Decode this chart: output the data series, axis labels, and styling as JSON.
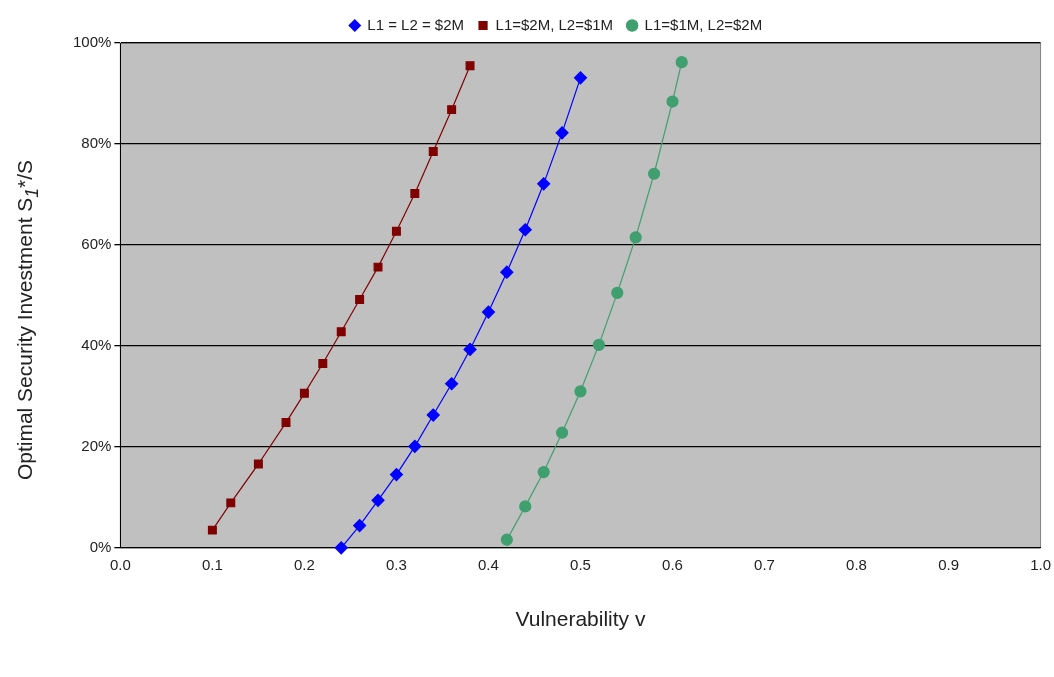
{
  "chart_data": {
    "type": "line",
    "xlabel": "Vulnerability v",
    "ylabel": "Optimal Security Investment S$_{1}$*/S",
    "xlim": [
      0,
      1
    ],
    "xticks": [
      {
        "value": 0,
        "label": "0.0"
      },
      {
        "value": 0.1,
        "label": "0.1"
      },
      {
        "value": 0.2,
        "label": "0.2"
      },
      {
        "value": 0.3,
        "label": "0.3"
      },
      {
        "value": 0.4,
        "label": "0.4"
      },
      {
        "value": 0.5,
        "label": "0.5"
      },
      {
        "value": 0.6,
        "label": "0.6"
      },
      {
        "value": 0.7,
        "label": "0.7"
      },
      {
        "value": 0.8,
        "label": "0.8"
      },
      {
        "value": 0.9,
        "label": "0.9"
      },
      {
        "value": 1,
        "label": "1.0"
      }
    ],
    "ylim": [
      0,
      100
    ],
    "yticks": [
      {
        "value": 0,
        "label": "0%"
      },
      {
        "value": 20,
        "label": "20%"
      },
      {
        "value": 40,
        "label": "40%"
      },
      {
        "value": 60,
        "label": "60%"
      },
      {
        "value": 80,
        "label": "80%"
      },
      {
        "value": 100,
        "label": "100%"
      }
    ],
    "grid": "y",
    "legend": "top",
    "series": [
      {
        "name": "L1 = L2 = $2M",
        "color": "#0000ff",
        "marker": "diamond",
        "x": [
          0.24,
          0.26,
          0.28,
          0.3,
          0.32,
          0.34,
          0.36,
          0.38,
          0.4,
          0.42,
          0.44,
          0.46,
          0.48,
          0.5
        ],
        "values": [
          0,
          4.4,
          9.4,
          14.5,
          20.1,
          26.3,
          32.5,
          39.3,
          46.7,
          54.6,
          63.0,
          72.1,
          82.2,
          93.1
        ]
      },
      {
        "name": "L1=$2M, L2=$1M",
        "color": "#800000",
        "marker": "square",
        "x": [
          0.1,
          0.12,
          0.15,
          0.18,
          0.2,
          0.22,
          0.24,
          0.26,
          0.28,
          0.3,
          0.32,
          0.34,
          0.36,
          0.38
        ],
        "values": [
          3.5,
          8.9,
          16.6,
          24.8,
          30.6,
          36.5,
          42.8,
          49.2,
          55.6,
          62.7,
          70.2,
          78.5,
          86.8,
          95.5
        ]
      },
      {
        "name": "L1=$1M, L2=$2M",
        "color": "#3f9f6f",
        "marker": "circle",
        "x": [
          0.42,
          0.44,
          0.46,
          0.48,
          0.5,
          0.52,
          0.54,
          0.56,
          0.58,
          0.6,
          0.61
        ],
        "values": [
          1.6,
          8.2,
          15.0,
          22.8,
          31.0,
          40.2,
          50.5,
          61.5,
          74.1,
          88.4,
          96.2
        ]
      }
    ]
  }
}
